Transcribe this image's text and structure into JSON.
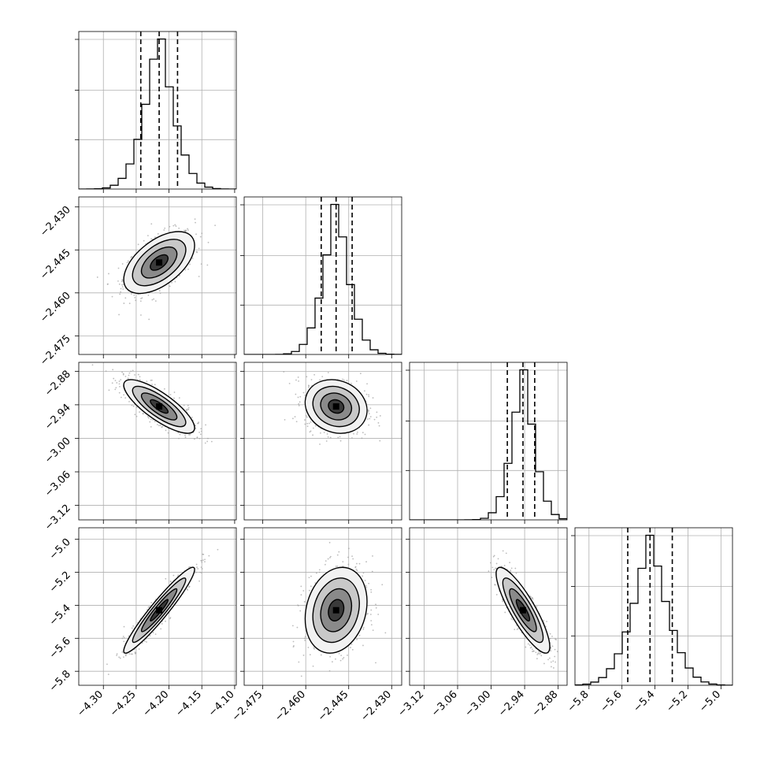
{
  "chart_data": {
    "type": "corner",
    "parameters": [
      {
        "ticks": [
          -4.3,
          -4.25,
          -4.2,
          -4.15,
          -4.1
        ],
        "tick_labels": [
          "−4.30",
          "−4.25",
          "−4.20",
          "−4.15",
          "−4.10"
        ],
        "range": [
          -4.3375,
          -4.0975
        ],
        "quantiles": [
          -4.243,
          -4.215,
          -4.187
        ],
        "median": -4.215,
        "sd": 0.027
      },
      {
        "ticks": [
          -2.475,
          -2.46,
          -2.445,
          -2.43
        ],
        "tick_labels": [
          "−2.475",
          "−2.460",
          "−2.445",
          "−2.430"
        ],
        "range": [
          -2.4815,
          -2.4265
        ],
        "quantiles": [
          -2.4546,
          -2.4494,
          -2.4438
        ],
        "median": -2.4494,
        "sd": 0.0054
      },
      {
        "ticks": [
          -3.12,
          -3.06,
          -3.0,
          -2.94,
          -2.88
        ],
        "tick_labels": [
          "−3.12",
          "−3.06",
          "−3.00",
          "−2.94",
          "−2.88"
        ],
        "range": [
          -3.146,
          -2.864
        ],
        "quantiles": [
          -2.971,
          -2.943,
          -2.922
        ],
        "median": -2.943,
        "sd": 0.024
      },
      {
        "ticks": [
          -5.8,
          -5.6,
          -5.4,
          -5.2,
          -5.0
        ],
        "tick_labels": [
          "−5.8",
          "−5.6",
          "−5.4",
          "−5.2",
          "−5.0"
        ],
        "range": [
          -5.885,
          -4.93
        ],
        "quantiles": [
          -5.565,
          -5.43,
          -5.295
        ],
        "median": -5.43,
        "sd": 0.13
      }
    ],
    "correlations": [
      [
        1.0,
        0.55,
        -0.8,
        0.95
      ],
      [
        0.55,
        1.0,
        -0.15,
        0.2
      ],
      [
        -0.8,
        -0.15,
        1.0,
        -0.85
      ],
      [
        0.95,
        0.2,
        -0.85,
        1.0
      ]
    ],
    "histogram_bins": 20,
    "quantile_levels": [
      0.16,
      0.5,
      0.84
    ],
    "contour_levels": [
      0.5,
      1.0,
      1.5,
      2.0
    ],
    "grid": true,
    "colors": {
      "line": "#000000",
      "grid": "#b0b0b0",
      "points": "#a0a0a0",
      "density": "#000000"
    }
  }
}
